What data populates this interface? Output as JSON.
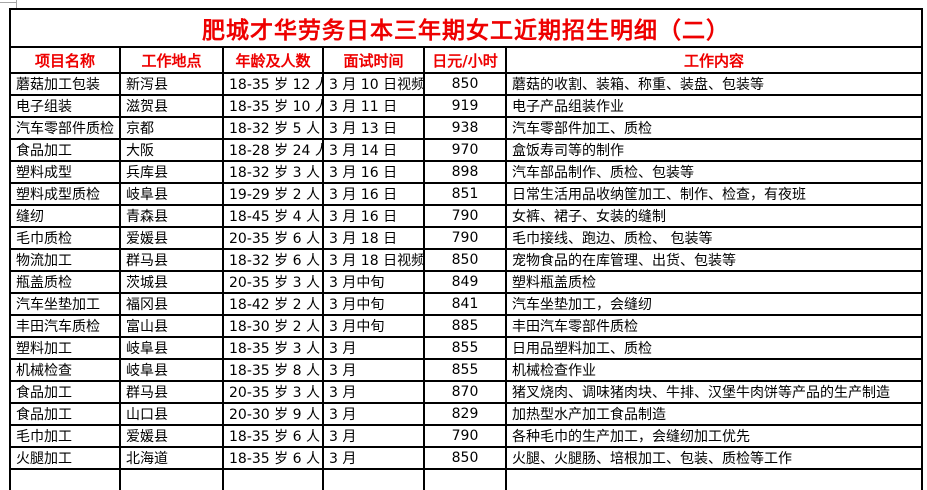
{
  "page": {
    "background": "#ffffff"
  },
  "colors": {
    "accent_red": "#ee0000",
    "border_black": "#000000",
    "gridline_gray": "#a6a6a6"
  },
  "table": {
    "title": "肥城才华劳务日本三年期女工近期招生明细（二）",
    "columns": [
      "项目名称",
      "工作地点",
      "年龄及人数",
      "面试时间",
      "日元/小时",
      "工作内容"
    ],
    "rows": [
      [
        "蘑菇加工包装",
        "新泻县",
        "18-35 岁 12 人",
        "3 月 10 日视频",
        "850",
        "蘑菇的收割、装箱、称重、装盘、包装等"
      ],
      [
        "电子组装",
        "滋贺县",
        "18-35 岁 10 人",
        "3 月 11 日",
        "919",
        "电子产品组装作业"
      ],
      [
        "汽车零部件质检",
        "京都",
        "18-32 岁 5 人",
        "3 月 13 日",
        "938",
        "汽车零部件加工、质检"
      ],
      [
        "食品加工",
        "大阪",
        "18-28 岁 24 人",
        "3 月 14 日",
        "970",
        "盒饭寿司等的制作"
      ],
      [
        "塑料成型",
        "兵库县",
        "18-32 岁 3 人",
        "3 月 16 日",
        "898",
        "汽车部品制作、质检、包装等"
      ],
      [
        "塑料成型质检",
        "岐阜县",
        "19-29 岁 2 人",
        "3 月 16 日",
        "851",
        "日常生活用品收纳筐加工、制作、检查，有夜班"
      ],
      [
        "缝纫",
        "青森县",
        "18-45 岁 4 人",
        "3 月 16 日",
        "790",
        "女裤、裙子、女装的缝制"
      ],
      [
        "毛巾质检",
        "爱媛县",
        "20-35 岁 6 人",
        "3 月 18 日",
        "790",
        "毛巾接线、跑边、质检、 包装等"
      ],
      [
        "物流加工",
        "群马县",
        "18-32 岁 6 人",
        "3 月 18 日视频",
        "850",
        "宠物食品的在库管理、出货、包装等"
      ],
      [
        "瓶盖质检",
        "茨城县",
        "20-35 岁 3 人",
        "3 月中旬",
        "849",
        "塑料瓶盖质检"
      ],
      [
        "汽车坐垫加工",
        "福冈县",
        "18-42 岁 2 人",
        "3 月中旬",
        "841",
        "汽车坐垫加工，会缝纫"
      ],
      [
        "丰田汽车质检",
        "富山县",
        "18-30 岁 2 人",
        "3 月中旬",
        "885",
        "丰田汽车零部件质检"
      ],
      [
        "塑料加工",
        "岐阜县",
        "18-35 岁 3 人",
        "3 月",
        "855",
        "日用品塑料加工、质检"
      ],
      [
        "机械检查",
        "岐阜县",
        "18-35 岁 8 人",
        "3 月",
        "855",
        "机械检查作业"
      ],
      [
        "食品加工",
        "群马县",
        "20-35 岁 3 人",
        "3 月",
        "870",
        "猪叉烧肉、调味猪肉块、牛排、汉堡牛肉饼等产品的生产制造"
      ],
      [
        "食品加工",
        "山口县",
        "20-30 岁 9 人",
        "3 月",
        "829",
        "加热型水产加工食品制造"
      ],
      [
        "毛巾加工",
        "爱媛县",
        "18-35 岁 6 人",
        "3 月",
        "790",
        "各种毛巾的生产加工，会缝纫加工优先"
      ],
      [
        "火腿加工",
        "北海道",
        "18-35 岁 6 人",
        "3 月",
        "850",
        "火腿、火腿肠、培根加工、包装、质检等工作"
      ]
    ]
  }
}
